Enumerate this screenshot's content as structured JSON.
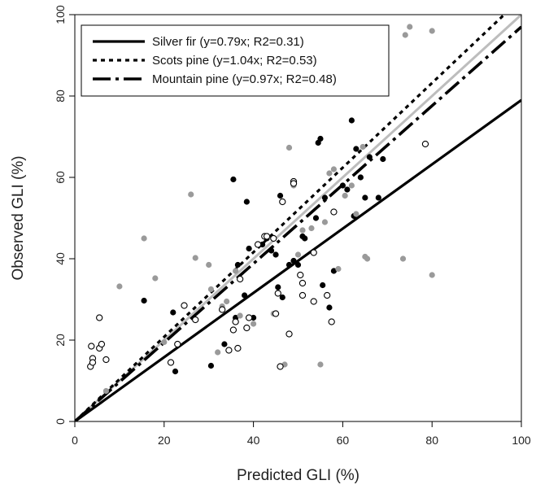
{
  "chart_data": {
    "type": "scatter",
    "title": "",
    "xlabel": "Predicted GLI (%)",
    "ylabel": "Observed GLI (%)",
    "xlim": [
      0,
      100
    ],
    "ylim": [
      0,
      100
    ],
    "xticks": [
      0,
      20,
      40,
      60,
      80,
      100
    ],
    "yticks": [
      0,
      20,
      40,
      60,
      80,
      100
    ],
    "grid": false,
    "legend_position": "top-left",
    "colors": {
      "silver_fir": "#000000",
      "scots_pine": "#9a9a9a",
      "mountain_pine": "#000000",
      "one_to_one": "#bdbdbd"
    },
    "series": [
      {
        "name": "Silver fir (y=0.79x; R2=0.31)",
        "marker": "filled-black",
        "line_style": "solid",
        "slope": 0.79,
        "points": [
          [
            15.5,
            29.7
          ],
          [
            22,
            26.8
          ],
          [
            22.5,
            12.3
          ],
          [
            30.5,
            13.7
          ],
          [
            33.5,
            19
          ],
          [
            35.5,
            59.5
          ],
          [
            36,
            25.5
          ],
          [
            36.5,
            38.5
          ],
          [
            38,
            31
          ],
          [
            38.5,
            54
          ],
          [
            39,
            42.5
          ],
          [
            40,
            25.5
          ],
          [
            42,
            43.5
          ],
          [
            43,
            45
          ],
          [
            44,
            42
          ],
          [
            45,
            41
          ],
          [
            45.5,
            33
          ],
          [
            46,
            55.5
          ],
          [
            46.5,
            30.5
          ],
          [
            48,
            38.5
          ],
          [
            49,
            39.5
          ],
          [
            50,
            38.5
          ],
          [
            51,
            45.5
          ],
          [
            51.5,
            45
          ],
          [
            54,
            50
          ],
          [
            54.5,
            68.5
          ],
          [
            55,
            69.5
          ],
          [
            55.5,
            33.5
          ],
          [
            56,
            55
          ],
          [
            57,
            28
          ],
          [
            58,
            37
          ],
          [
            60,
            58
          ],
          [
            61,
            57
          ],
          [
            62,
            74
          ],
          [
            62.5,
            50.5
          ],
          [
            63,
            67
          ],
          [
            64,
            60
          ],
          [
            65,
            55
          ],
          [
            66,
            65
          ],
          [
            68,
            55
          ],
          [
            69,
            64.5
          ]
        ]
      },
      {
        "name": "Scots pine (y=1.04x; R2=0.53)",
        "marker": "filled-gray",
        "line_style": "dotted",
        "slope": 1.04,
        "points": [
          [
            7,
            7.5
          ],
          [
            10,
            33.2
          ],
          [
            15.5,
            45
          ],
          [
            18,
            35.2
          ],
          [
            20,
            19.5
          ],
          [
            26,
            55.8
          ],
          [
            27,
            40.2
          ],
          [
            30,
            38.5
          ],
          [
            30.5,
            32.5
          ],
          [
            32,
            17
          ],
          [
            33,
            28.3
          ],
          [
            34,
            29.5
          ],
          [
            36,
            37
          ],
          [
            37,
            26
          ],
          [
            40,
            24
          ],
          [
            44.5,
            26.5
          ],
          [
            47,
            14
          ],
          [
            48,
            67.3
          ],
          [
            49,
            58
          ],
          [
            50,
            41
          ],
          [
            51,
            47
          ],
          [
            53,
            47.5
          ],
          [
            55,
            14
          ],
          [
            56,
            49
          ],
          [
            57,
            61
          ],
          [
            58,
            62
          ],
          [
            59,
            37.5
          ],
          [
            60.5,
            55.5
          ],
          [
            62,
            58
          ],
          [
            63,
            51
          ],
          [
            64.5,
            67.5
          ],
          [
            65,
            40.5
          ],
          [
            65.5,
            40
          ],
          [
            73.5,
            40
          ],
          [
            74,
            95
          ],
          [
            75,
            97
          ],
          [
            80,
            96
          ],
          [
            80,
            36
          ]
        ]
      },
      {
        "name": "Mountain pine (y=0.97x; R2=0.48)",
        "marker": "open-circle",
        "line_style": "dash-dot",
        "slope": 0.97,
        "points": [
          [
            3.5,
            13.5
          ],
          [
            3.7,
            18.5
          ],
          [
            4,
            15.5
          ],
          [
            4,
            14.5
          ],
          [
            5.5,
            18
          ],
          [
            5.5,
            25.5
          ],
          [
            6,
            19
          ],
          [
            7,
            15.2
          ],
          [
            21.5,
            14.5
          ],
          [
            23,
            19
          ],
          [
            24.5,
            28.5
          ],
          [
            27,
            25
          ],
          [
            33,
            27.5
          ],
          [
            34.5,
            17.5
          ],
          [
            35.5,
            22.5
          ],
          [
            36,
            24.5
          ],
          [
            36.5,
            18
          ],
          [
            37,
            35
          ],
          [
            38.5,
            23
          ],
          [
            39,
            25.5
          ],
          [
            41,
            43.5
          ],
          [
            42.5,
            45.5
          ],
          [
            43,
            45.5
          ],
          [
            44.5,
            45
          ],
          [
            45,
            26.5
          ],
          [
            45.5,
            31.5
          ],
          [
            46,
            13.5
          ],
          [
            46.5,
            54
          ],
          [
            48,
            21.5
          ],
          [
            49,
            59
          ],
          [
            49,
            58.5
          ],
          [
            50.5,
            36
          ],
          [
            51,
            34
          ],
          [
            51,
            31
          ],
          [
            53.5,
            29.5
          ],
          [
            53.5,
            41.5
          ],
          [
            56.5,
            31
          ],
          [
            57.5,
            24.5
          ],
          [
            58,
            51.5
          ],
          [
            78.5,
            68.2
          ]
        ]
      },
      {
        "name": "",
        "marker": "none",
        "line_style": "solid-gray",
        "slope": 1.0,
        "points": []
      }
    ]
  }
}
